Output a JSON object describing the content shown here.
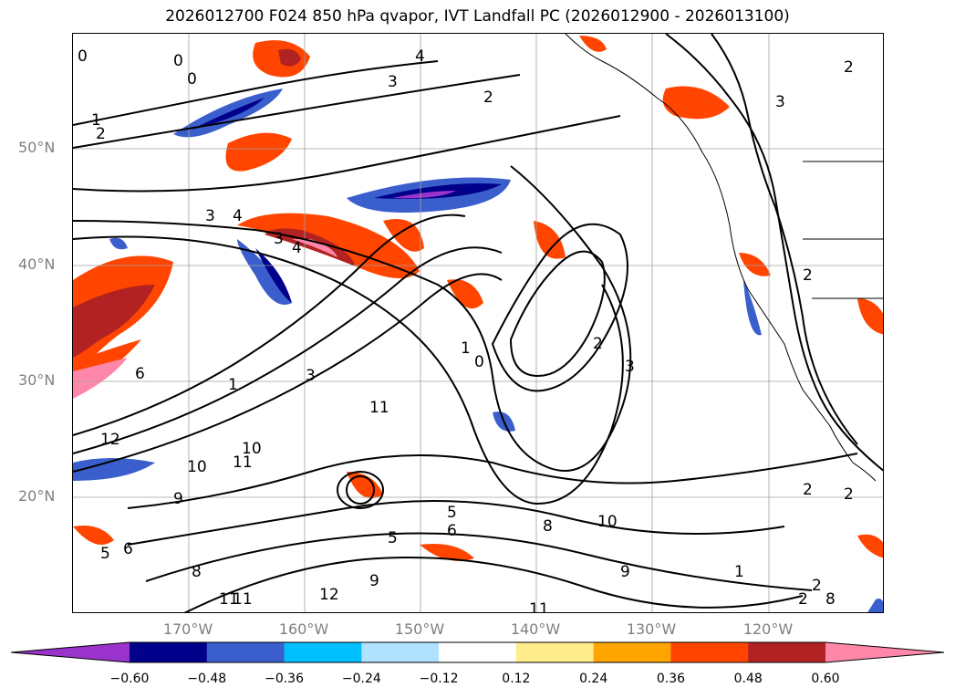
{
  "title": "2026012700 F024 850 hPa qvapor, IVT Landfall PC (2026012900 - 2026013100)",
  "lat_labels": [
    "50°N",
    "40°N",
    "30°N",
    "20°N"
  ],
  "lon_labels": [
    "170°W",
    "160°W",
    "150°W",
    "140°W",
    "130°W",
    "120°W"
  ],
  "colorbar": {
    "colors": [
      "#9933cc",
      "#00008b",
      "#3a5fcd",
      "#00bfff",
      "#b0e2ff",
      "#ffffff",
      "#ffec8b",
      "#ffa500",
      "#ff4500",
      "#b22222",
      "#ff88aa"
    ],
    "tick_labels": [
      "−0.60",
      "−0.48",
      "−0.36",
      "−0.24",
      "−0.12",
      "0.12",
      "0.24",
      "0.36",
      "0.48",
      "0.60"
    ],
    "tick_values": [
      -0.6,
      -0.48,
      -0.36,
      -0.24,
      -0.12,
      0.12,
      0.24,
      0.36,
      0.48,
      0.6
    ],
    "extend": "both"
  },
  "map": {
    "projection": "lat-lon",
    "lon_range": [
      -180,
      -110
    ],
    "lat_range": [
      10,
      60
    ],
    "gridlines": true,
    "gridline_color": "#a0a0a0",
    "contour_color": "#000000",
    "contour_labels": [
      "0",
      "0",
      "0",
      "1",
      "2",
      "3",
      "4",
      "2",
      "3",
      "2",
      "3",
      "4",
      "3",
      "4",
      "2",
      "1",
      "0",
      "2",
      "3",
      "6",
      "1",
      "3",
      "11",
      "12",
      "10",
      "10",
      "11",
      "9",
      "5",
      "5",
      "6",
      "5",
      "6",
      "9",
      "12",
      "11",
      "10",
      "8",
      "8",
      "2",
      "2",
      "2",
      "1",
      "2",
      "11",
      "9",
      "8",
      "11"
    ]
  }
}
